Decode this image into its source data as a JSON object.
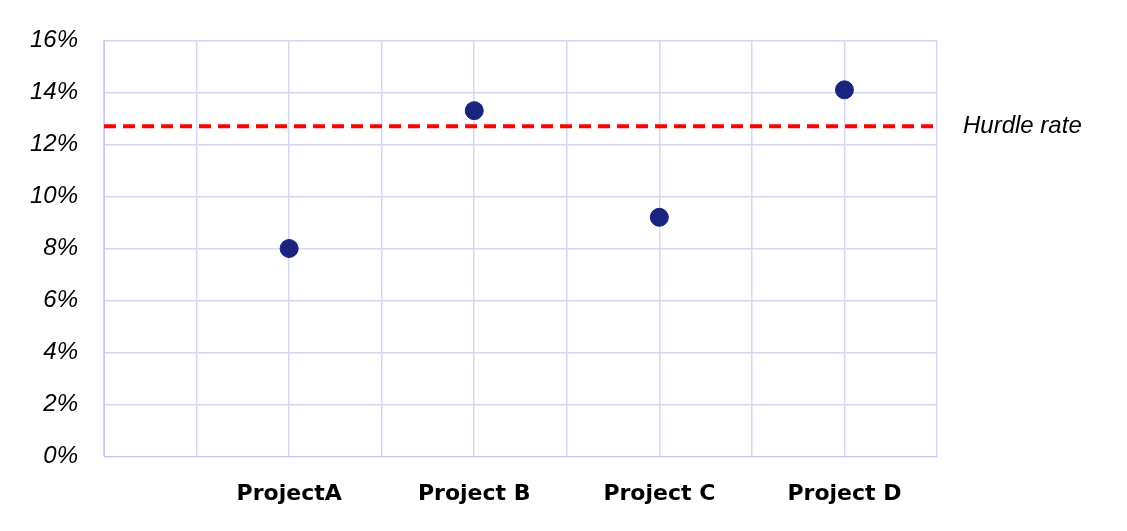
{
  "chart_data": {
    "type": "scatter",
    "categories": [
      null,
      null,
      "ProjectA",
      null,
      "Project B",
      null,
      "Project C",
      null,
      "Project D",
      null
    ],
    "series": [
      {
        "color": "#1a237e",
        "values": [
          null,
          null,
          8,
          null,
          13.3,
          null,
          9.2,
          null,
          14.1,
          null
        ]
      }
    ],
    "ylim": [
      0,
      16
    ],
    "yticks": [
      {
        "value": 0,
        "label": "0%"
      },
      {
        "value": 2,
        "label": "2%"
      },
      {
        "value": 4,
        "label": "4%"
      },
      {
        "value": 6,
        "label": "6%"
      },
      {
        "value": 8,
        "label": "8%"
      },
      {
        "value": 10,
        "label": "10%"
      },
      {
        "value": 12,
        "label": "12%"
      },
      {
        "value": 14,
        "label": "14%"
      },
      {
        "value": 16,
        "label": "16%"
      }
    ],
    "ref_lines": [
      {
        "axis": "y",
        "value": 12.7,
        "label": "Hurdle rate",
        "color": "#ff0000",
        "line_style": "dashed"
      }
    ],
    "grid": true,
    "legend": false,
    "marker": "circle"
  }
}
